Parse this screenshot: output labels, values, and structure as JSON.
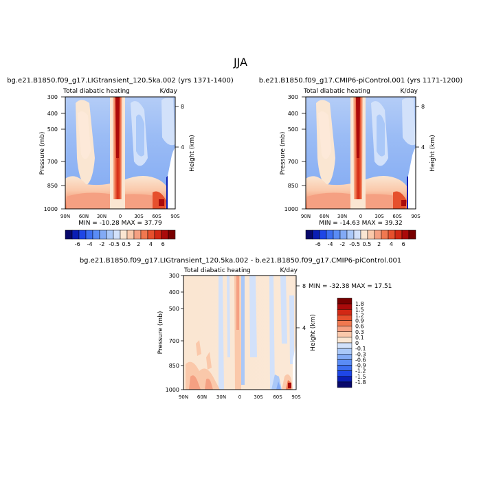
{
  "suptitle": "JJA",
  "chart_data": [
    {
      "type": "heatmap",
      "title": "bg.e21.B1850.f09_g17.LIGtransient_120.5ka.002 (yrs 1371-1400)",
      "subtitle_left": "Total diabatic heating",
      "subtitle_right": "K/day",
      "x_ticks": [
        "90N",
        "60N",
        "30N",
        "0",
        "30S",
        "60S",
        "90S"
      ],
      "y_ticks": [
        "300",
        "400",
        "500",
        "700",
        "850",
        "1000"
      ],
      "ylabel": "Pressure (mb)",
      "ylabel_right": "Height (km)",
      "y_right_ticks": [
        "8",
        "4"
      ],
      "stats": "MIN = -10.28   MAX =  37.79"
    },
    {
      "type": "heatmap",
      "title": "b.e21.B1850.f09_g17.CMIP6-piControl.001 (yrs 1171-1200)",
      "subtitle_left": "Total diabatic heating",
      "subtitle_right": "K/day",
      "x_ticks": [
        "90N",
        "60N",
        "30N",
        "0",
        "30S",
        "60S",
        "90S"
      ],
      "y_ticks": [
        "300",
        "400",
        "500",
        "700",
        "850",
        "1000"
      ],
      "ylabel": "Pressure (mb)",
      "ylabel_right": "Height (km)",
      "y_right_ticks": [
        "8",
        "4"
      ],
      "stats": "MIN = -14.63   MAX =  39.32"
    },
    {
      "type": "heatmap",
      "title": "bg.e21.B1850.f09_g17.LIGtransient_120.5ka.002 - b.e21.B1850.f09_g17.CMIP6-piControl.001",
      "subtitle_left": "Total diabatic heating",
      "subtitle_right": "K/day",
      "x_ticks": [
        "90N",
        "60N",
        "30N",
        "0",
        "30S",
        "60S",
        "90S"
      ],
      "y_ticks": [
        "300",
        "400",
        "500",
        "700",
        "850",
        "1000"
      ],
      "ylabel": "Pressure (mb)",
      "ylabel_right": "Height (km)",
      "y_right_ticks": [
        "8",
        "4"
      ],
      "stats": "MIN = -32.38   MAX =  17.51"
    }
  ],
  "colorbar_top": {
    "colors": [
      "#08086b",
      "#0a1eb4",
      "#1e46e6",
      "#3c6ef0",
      "#5a8cf5",
      "#82aaf5",
      "#aac8f8",
      "#d2e1fa",
      "#fae6d2",
      "#fac8aa",
      "#f5a082",
      "#f07850",
      "#e6502d",
      "#d22814",
      "#aa0a0a",
      "#780000"
    ],
    "labels": [
      "-6",
      "-4",
      "-2",
      "-0.5",
      "0.5",
      "2",
      "4",
      "6"
    ]
  },
  "colorbar_diff": {
    "colors": [
      "#08086b",
      "#0a1eb4",
      "#1e46e6",
      "#3c6ef0",
      "#5a8cf5",
      "#82aaf5",
      "#aac8f8",
      "#d2e1fa",
      "#fae6d2",
      "#fac8aa",
      "#f5a082",
      "#f07850",
      "#e6502d",
      "#d22814",
      "#aa0a0a",
      "#780000"
    ],
    "labels": [
      "1.8",
      "1.5",
      "1.2",
      "0.9",
      "0.6",
      "0.3",
      "0.1",
      "0",
      "-0.1",
      "-0.3",
      "-0.6",
      "-0.9",
      "-1.2",
      "-1.5",
      "-1.8"
    ]
  }
}
